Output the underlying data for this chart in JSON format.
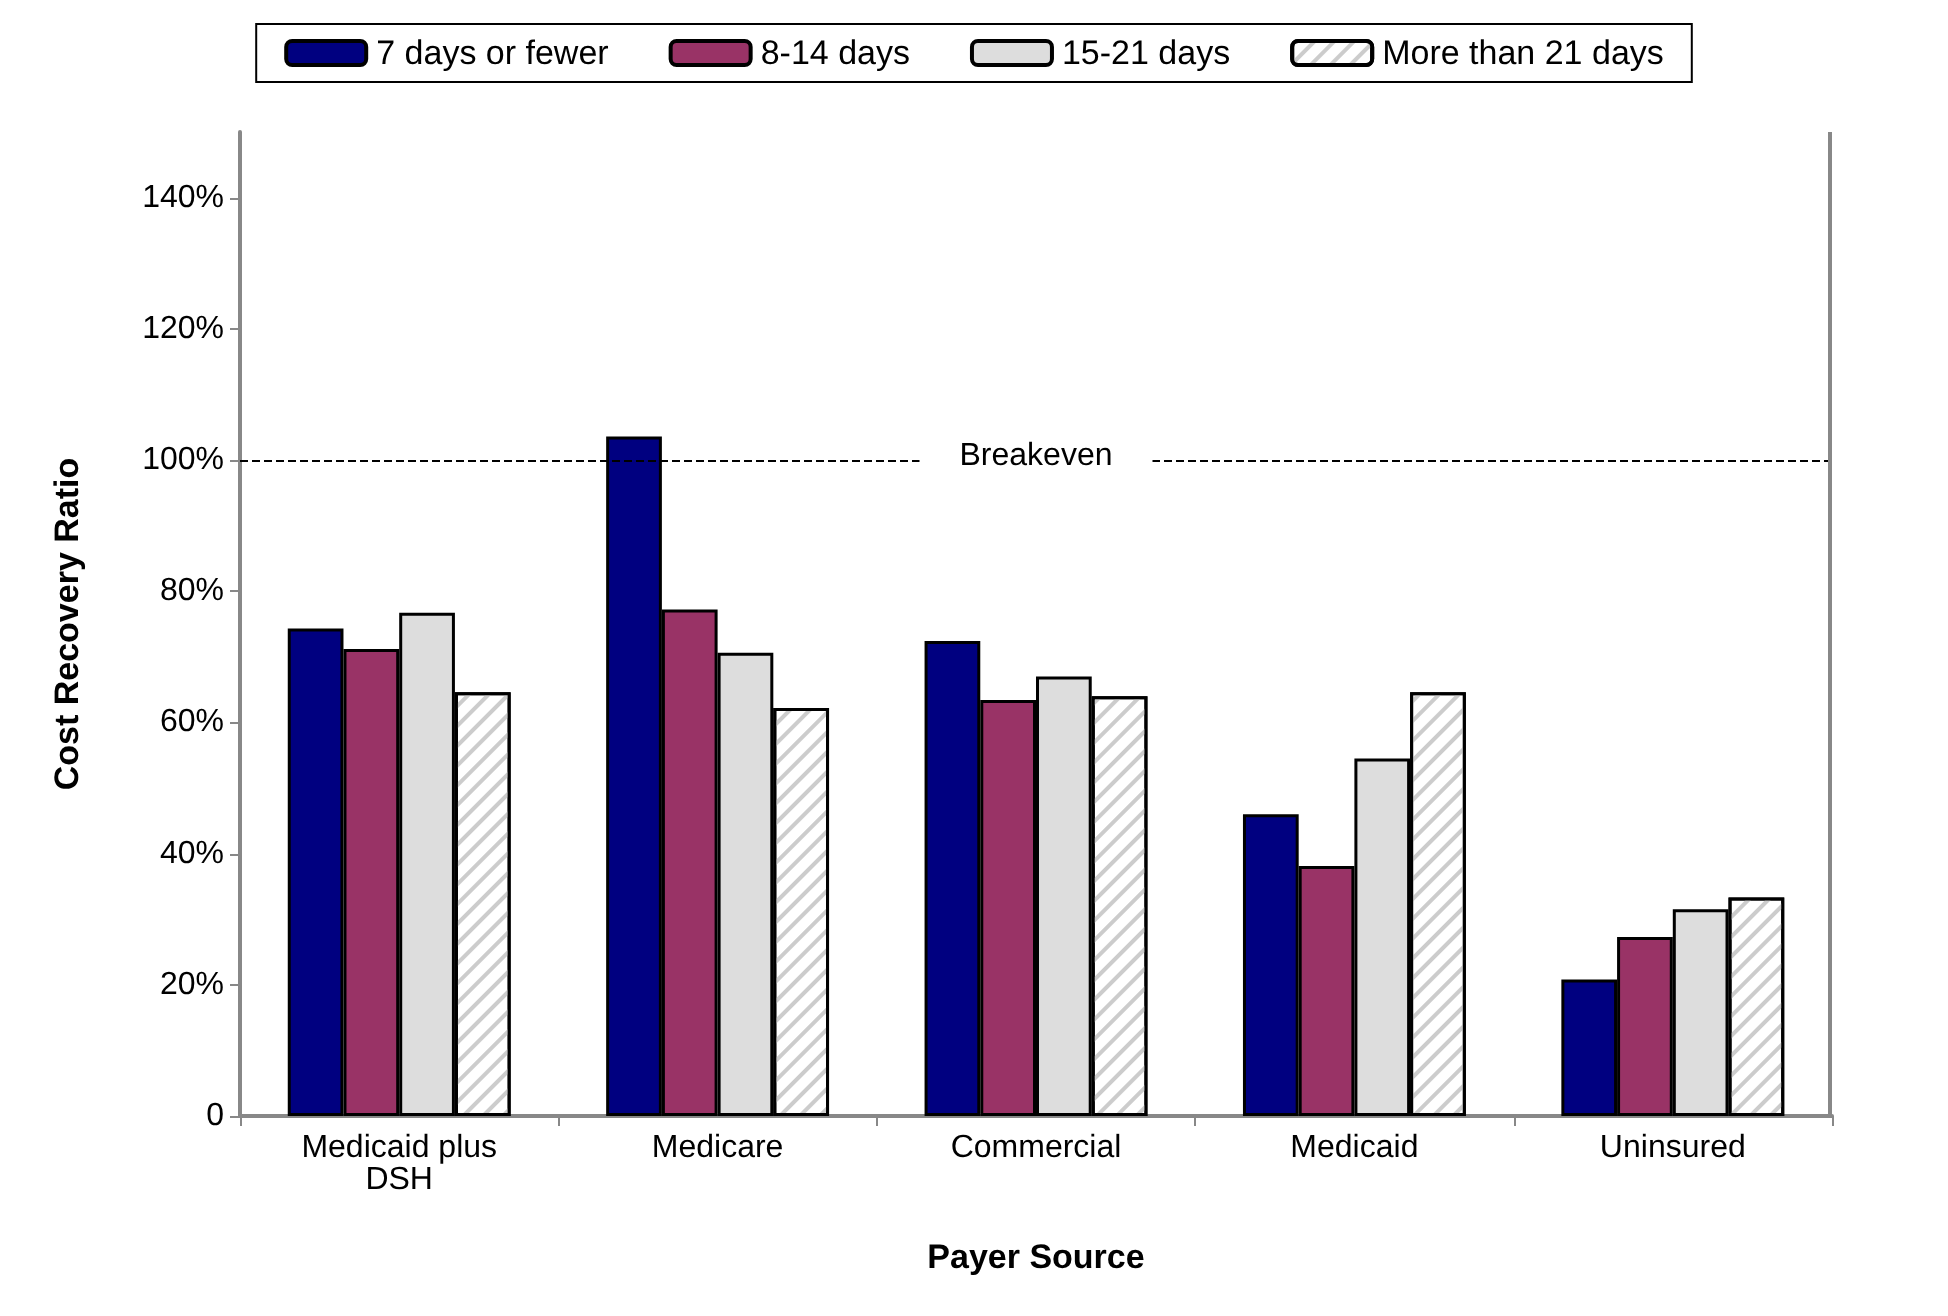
{
  "chart_data": {
    "type": "bar",
    "xlabel": "Payer Source",
    "ylabel": "Cost Recovery Ratio",
    "categories": [
      "Medicaid plus DSH",
      "Medicare",
      "Commercial",
      "Medicaid",
      "Uninsured"
    ],
    "series": [
      {
        "name": "7 days or fewer",
        "color": "#000080",
        "values": [
          74.3,
          103.6,
          72.4,
          46.0,
          20.8
        ]
      },
      {
        "name": "8-14 days",
        "color": "#993366",
        "values": [
          71.2,
          77.2,
          63.4,
          38.1,
          27.3
        ]
      },
      {
        "name": "15-21 days",
        "color": "#dddddd",
        "values": [
          76.7,
          70.6,
          67.0,
          54.5,
          31.5
        ]
      },
      {
        "name": "More than 21 days",
        "color": "#ffffff",
        "values": [
          64.6,
          62.2,
          64.0,
          64.6,
          33.3
        ]
      }
    ],
    "ylim": [
      0,
      150
    ],
    "yticks": [
      0,
      {
        "value": 20,
        "label": "20%"
      },
      {
        "value": 40,
        "label": "40%"
      },
      {
        "value": 60,
        "label": "60%"
      },
      {
        "value": 80,
        "label": "80%"
      },
      {
        "value": 100,
        "label": "100%"
      },
      {
        "value": 120,
        "label": "120%"
      },
      {
        "value": 140,
        "label": "140%"
      }
    ],
    "ref_lines": [
      {
        "axis": "y",
        "value": 100,
        "label": "Breakeven",
        "line_style": "dashed",
        "color": "#000000"
      }
    ],
    "legend": "top",
    "grid": false
  }
}
